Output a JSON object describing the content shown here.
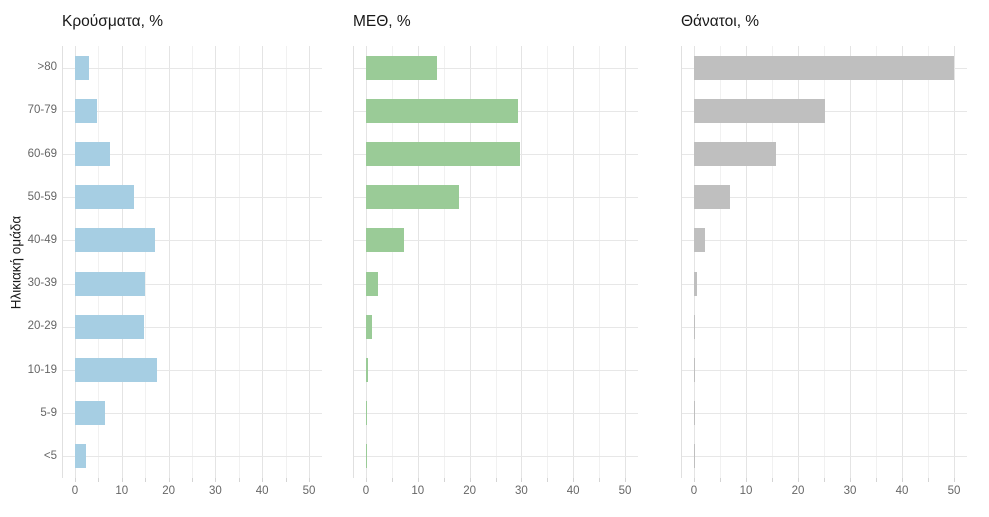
{
  "chart_data": {
    "type": "bar",
    "orientation": "horizontal",
    "ylabel": "Ηλικιακή ομάδα",
    "categories": [
      ">80",
      "70-79",
      "60-69",
      "50-59",
      "40-49",
      "30-39",
      "20-29",
      "10-19",
      "5-9",
      "<5"
    ],
    "panels": [
      {
        "title": "Κρούσματα, %",
        "color": "#a6cee3",
        "values": [
          3.0,
          4.7,
          7.5,
          12.5,
          17.1,
          15.0,
          14.8,
          17.6,
          6.4,
          2.4
        ]
      },
      {
        "title": "ΜΕΘ, %",
        "color": "#9acb97",
        "values": [
          13.8,
          29.3,
          29.8,
          18.0,
          7.4,
          2.4,
          1.2,
          0.4,
          0.2,
          0.2
        ]
      },
      {
        "title": "Θάνατοι, %",
        "color": "#bfbfbf",
        "values": [
          50.0,
          25.2,
          15.7,
          6.9,
          2.1,
          0.65,
          0.15,
          0.15,
          0.05,
          0.1
        ]
      }
    ],
    "xlim": [
      0,
      50
    ],
    "x_tick_labels": [
      0,
      10,
      20,
      30,
      40,
      50
    ],
    "x_minor_step": 5,
    "grid": "major and minor vertical, horizontal per category",
    "colors": {
      "grid_major": "#e4e4e4",
      "grid_minor": "#f1f1f1",
      "axis_text": "#666666",
      "title_text": "#191919"
    }
  }
}
